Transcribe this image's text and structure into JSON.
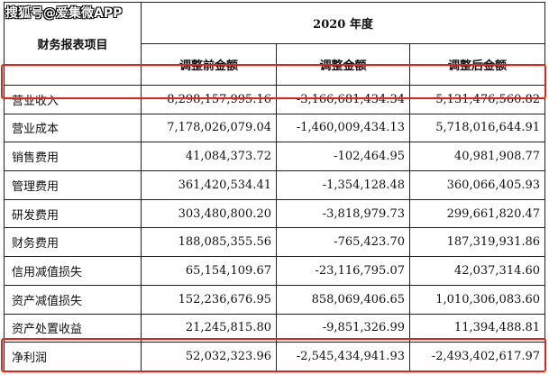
{
  "watermark": "搜狐号@爱集微APP",
  "header": {
    "item_col": "财务报表项目",
    "year": "2020 年度",
    "col_before": "调整前金额",
    "col_adjust": "调整金额",
    "col_after": "调整后金额"
  },
  "rows": [
    {
      "item": "营业收入",
      "before": "8,298,157,995.16",
      "adjust": "-3,166,681,434.34",
      "after": "5,131,476,560.82"
    },
    {
      "item": "营业成本",
      "before": "7,178,026,079.04",
      "adjust": "-1,460,009,434.13",
      "after": "5,718,016,644.91"
    },
    {
      "item": "销售费用",
      "before": "41,084,373.72",
      "adjust": "-102,464.95",
      "after": "40,981,908.77"
    },
    {
      "item": "管理费用",
      "before": "361,420,534.41",
      "adjust": "-1,354,128.48",
      "after": "360,066,405.93"
    },
    {
      "item": "研发费用",
      "before": "303,480,800.20",
      "adjust": "-3,818,979.73",
      "after": "299,661,820.47"
    },
    {
      "item": "财务费用",
      "before": "188,085,355.56",
      "adjust": "-765,423.70",
      "after": "187,319,931.86"
    },
    {
      "item": "信用减值损失",
      "before": "65,154,109.67",
      "adjust": "-23,116,795.07",
      "after": "42,037,314.60"
    },
    {
      "item": "资产减值损失",
      "before": "152,236,676.95",
      "adjust": "858,069,406.65",
      "after": "1,010,306,083.60"
    },
    {
      "item": "资产处置收益",
      "before": "21,245,815.80",
      "adjust": "-9,851,326.99",
      "after": "11,394,488.81"
    },
    {
      "item": "净利润",
      "before": "52,032,323.96",
      "adjust": "-2,545,434,941.93",
      "after": "-2,493,402,617.97"
    }
  ],
  "highlight_color": "#e8221a"
}
